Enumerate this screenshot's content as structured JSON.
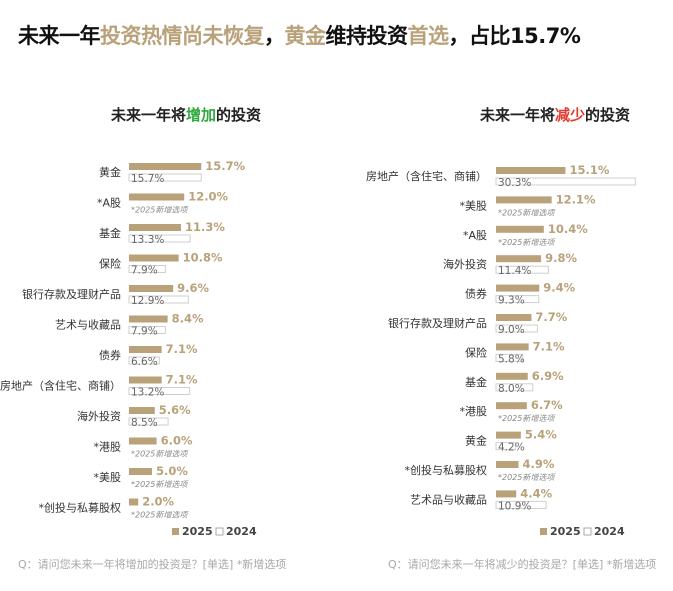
{
  "headline": {
    "part1": "未来一年",
    "part2": "投资热情尚未恢复",
    "part3": "，",
    "part4": "黄金",
    "part5": "维持投资",
    "part6": "首选",
    "part7": "，占比15.7%"
  },
  "colors": {
    "bar_2025": "#b9a27a",
    "bar_2024": "#ffffff",
    "bar_2024_border": "#cfcfcf",
    "label_2025": "#b9a27a",
    "label_2024": "#666666",
    "highlight_increase": "#2eaa3c",
    "highlight_decrease": "#e23a2e"
  },
  "chart_data": [
    {
      "type": "bar",
      "orientation": "horizontal",
      "title_prefix": "未来一年将",
      "title_highlight": "增加",
      "title_suffix": "的投资",
      "categories": [
        "黄金",
        "*A股",
        "基金",
        "保险",
        "银行存款及理财产品",
        "艺术与收藏品",
        "债券",
        "房地产（含住宅、商铺）",
        "海外投资",
        "*港股",
        "*美股",
        "*创投与私募股权"
      ],
      "series": [
        {
          "name": "2025",
          "values": [
            15.7,
            12.0,
            11.3,
            10.8,
            9.6,
            8.4,
            7.1,
            7.1,
            5.6,
            6.0,
            5.0,
            2.0
          ]
        },
        {
          "name": "2024",
          "values": [
            15.7,
            null,
            13.3,
            7.9,
            12.9,
            7.9,
            6.6,
            13.2,
            8.5,
            null,
            null,
            null
          ]
        }
      ],
      "labels_2025": [
        "15.7%",
        "12.0%",
        "11.3%",
        "10.8%",
        "9.6%",
        "8.4%",
        "7.1%",
        "7.1%",
        "5.6%",
        "6.0%",
        "5.0%",
        "2.0%"
      ],
      "labels_2024": [
        "15.7%",
        "*2025新增选项",
        "13.3%",
        "7.9%",
        "12.9%",
        "7.9%",
        "6.6%",
        "13.2%",
        "8.5%",
        "*2025新增选项",
        "*2025新增选项",
        "*2025新增选项"
      ],
      "legend": [
        "2025",
        "2024"
      ],
      "footnote": "Q：请问您未来一年将增加的投资是？[单选] *新增选项"
    },
    {
      "type": "bar",
      "orientation": "horizontal",
      "title_prefix": "未来一年将",
      "title_highlight": "减少",
      "title_suffix": "的投资",
      "categories": [
        "房地产（含住宅、商铺）",
        "*美股",
        "*A股",
        "海外投资",
        "债券",
        "银行存款及理财产品",
        "保险",
        "基金",
        "*港股",
        "黄金",
        "*创投与私募股权",
        "艺术品与收藏品"
      ],
      "series": [
        {
          "name": "2025",
          "values": [
            15.1,
            12.1,
            10.4,
            9.8,
            9.4,
            7.7,
            7.1,
            6.9,
            6.7,
            5.4,
            4.9,
            4.4
          ]
        },
        {
          "name": "2024",
          "values": [
            30.3,
            null,
            null,
            11.4,
            9.3,
            9.0,
            5.8,
            8.0,
            null,
            4.2,
            null,
            10.9
          ]
        }
      ],
      "labels_2025": [
        "15.1%",
        "12.1%",
        "10.4%",
        "9.8%",
        "9.4%",
        "7.7%",
        "7.1%",
        "6.9%",
        "6.7%",
        "5.4%",
        "4.9%",
        "4.4%"
      ],
      "labels_2024": [
        "30.3%",
        "*2025新增选项",
        "*2025新增选项",
        "11.4%",
        "9.3%",
        "9.0%",
        "5.8%",
        "8.0%",
        "*2025新增选项",
        "4.2%",
        "*2025新增选项",
        "10.9%"
      ],
      "legend": [
        "2025",
        "2024"
      ],
      "footnote": "Q：请问您未来一年将减少的投资是？[单选] *新增选项"
    }
  ]
}
